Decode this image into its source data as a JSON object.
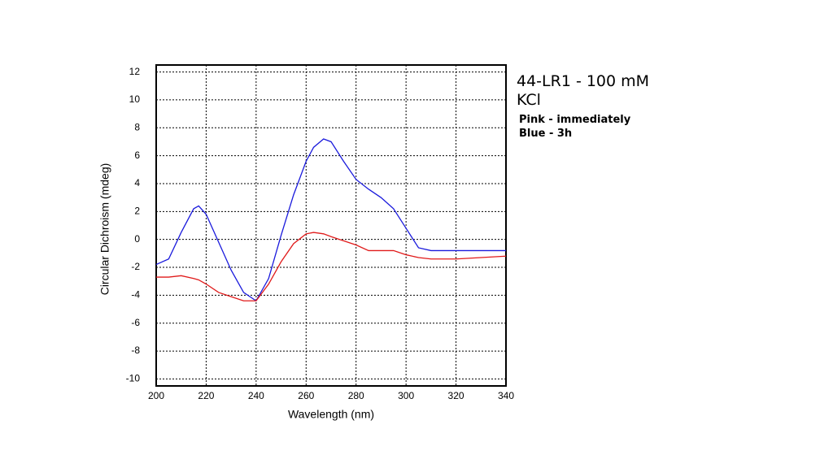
{
  "chart_data": {
    "type": "line",
    "title": "44-LR1 - 100 mM KCl",
    "annotations": [
      "Pink - immediately",
      "Blue - 3h"
    ],
    "x_label": "Wavelength (nm)",
    "y_label": "Circular Dichroism (mdeg)",
    "x": [
      200,
      205,
      210,
      215,
      217,
      220,
      225,
      230,
      235,
      240,
      245,
      250,
      255,
      260,
      263,
      267,
      270,
      275,
      280,
      285,
      290,
      295,
      300,
      305,
      310,
      320,
      330,
      340
    ],
    "series": [
      {
        "color": "#1a1adc",
        "values": [
          -1.8,
          -1.4,
          0.5,
          2.2,
          2.4,
          1.8,
          -0.2,
          -2.2,
          -3.8,
          -4.4,
          -2.8,
          0.3,
          3.2,
          5.6,
          6.6,
          7.2,
          7.0,
          5.6,
          4.3,
          3.6,
          3.0,
          2.2,
          0.8,
          -0.6,
          -0.8,
          -0.8,
          -0.8,
          -0.8
        ]
      },
      {
        "color": "#e01a1a",
        "values": [
          -2.7,
          -2.7,
          -2.6,
          -2.8,
          -2.9,
          -3.2,
          -3.8,
          -4.1,
          -4.4,
          -4.4,
          -3.2,
          -1.6,
          -0.3,
          0.4,
          0.5,
          0.4,
          0.2,
          -0.1,
          -0.4,
          -0.8,
          -0.8,
          -0.8,
          -1.1,
          -1.3,
          -1.4,
          -1.4,
          -1.3,
          -1.2
        ]
      }
    ],
    "xlim": [
      200,
      340
    ],
    "xticks": [
      200,
      220,
      240,
      260,
      280,
      300,
      320,
      340
    ],
    "ylim": [
      -10.5,
      12.5
    ],
    "yticks": [
      -10,
      -8,
      -6,
      -4,
      -2,
      0,
      2,
      4,
      6,
      8,
      10,
      12
    ],
    "grid": true
  }
}
